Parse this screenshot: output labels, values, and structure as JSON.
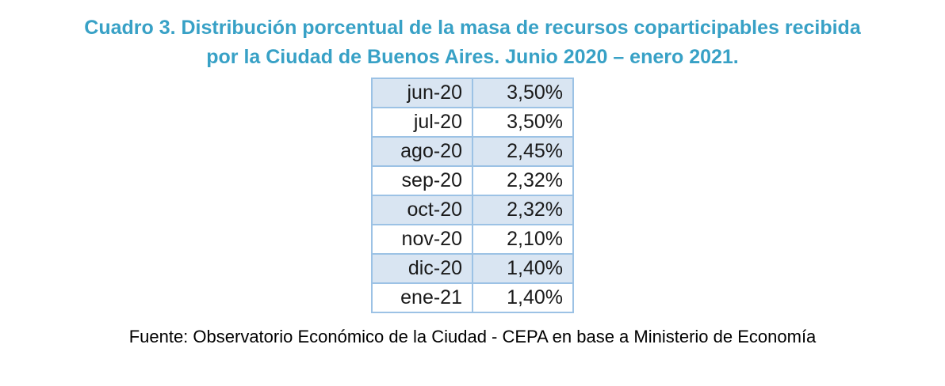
{
  "title": {
    "line1": "Cuadro 3. Distribución porcentual de la masa de recursos coparticipables recibida",
    "line2": "por la Ciudad de Buenos Aires. Junio 2020 – enero 2021."
  },
  "table": {
    "rows": [
      {
        "month": "jun-20",
        "value": "3,50%"
      },
      {
        "month": "jul-20",
        "value": "3,50%"
      },
      {
        "month": "ago-20",
        "value": "2,45%"
      },
      {
        "month": "sep-20",
        "value": "2,32%"
      },
      {
        "month": "oct-20",
        "value": "2,32%"
      },
      {
        "month": "nov-20",
        "value": "2,10%"
      },
      {
        "month": "dic-20",
        "value": "1,40%"
      },
      {
        "month": "ene-21",
        "value": "1,40%"
      }
    ]
  },
  "footer": {
    "source": "Fuente: Observatorio Económico de la Ciudad - CEPA en base a Ministerio de Economía"
  },
  "colors": {
    "title_text": "#38A1C6",
    "table_border": "#9CC2E5",
    "row_shaded": "#D9E5F2",
    "row_plain": "#FFFFFF",
    "body_text": "#1A1A1A"
  },
  "chart_data": {
    "type": "table",
    "title": "Cuadro 3. Distribución porcentual de la masa de recursos coparticipables recibida por la Ciudad de Buenos Aires. Junio 2020 – enero 2021.",
    "categories": [
      "jun-20",
      "jul-20",
      "ago-20",
      "sep-20",
      "oct-20",
      "nov-20",
      "dic-20",
      "ene-21"
    ],
    "values": [
      3.5,
      3.5,
      2.45,
      2.32,
      2.32,
      2.1,
      1.4,
      1.4
    ],
    "unit": "%",
    "source": "Fuente: Observatorio Económico de la Ciudad - CEPA en base a Ministerio de Economía"
  }
}
